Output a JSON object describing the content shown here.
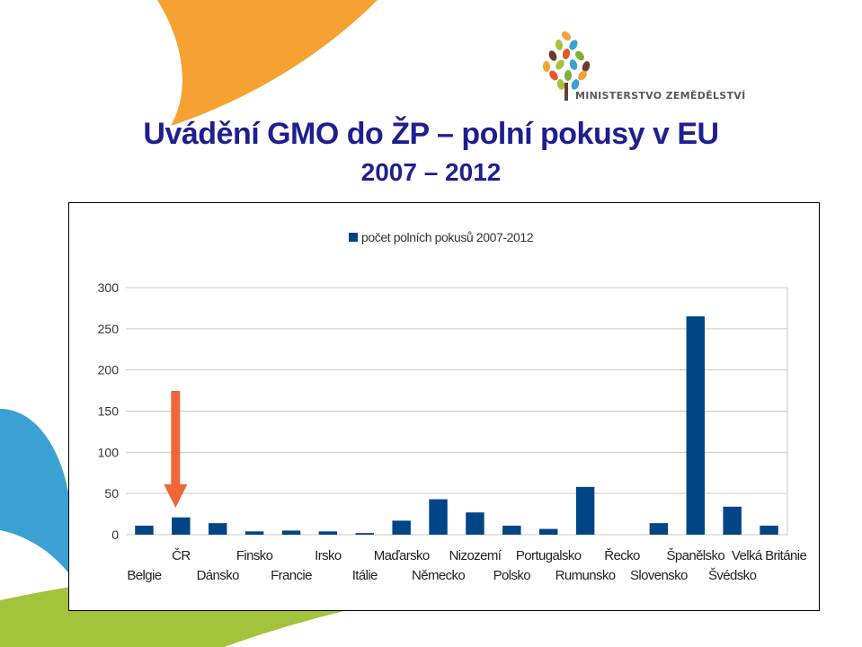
{
  "slide": {
    "title": "Uvádění GMO do ŽP – polní pokusy v EU",
    "subtitle": "2007 – 2012",
    "logo_text": "MINISTERSTVO ZEMĚDĚLSTVÍ",
    "logo_icon": "tree-logo-icon",
    "pointer_icon": "down-arrow-icon"
  },
  "colors": {
    "bar": "#004586",
    "arrow": "#f0653a",
    "title": "#1f1f8f",
    "orange_swirl": "#f5a233",
    "blue_swirl": "#3aa1d2",
    "green_swirl": "#a3c33a"
  },
  "chart_data": {
    "type": "bar",
    "legend": "počet polních pokusů 2007-2012",
    "legend_position": "top",
    "categories": [
      "Belgie",
      "ČR",
      "Dánsko",
      "Finsko",
      "Francie",
      "Irsko",
      "Itálie",
      "Maďarsko",
      "Německo",
      "Nizozemí",
      "Polsko",
      "Portugalsko",
      "Rumunsko",
      "Řecko",
      "Slovensko",
      "Španělsko",
      "Švédsko",
      "Velká Británie"
    ],
    "values": [
      11,
      21,
      14,
      4,
      5,
      4,
      2,
      17,
      43,
      27,
      11,
      7,
      58,
      0,
      14,
      265,
      34,
      11
    ],
    "y_ticks": [
      "0",
      "50",
      "100",
      "150",
      "200",
      "250",
      "300"
    ],
    "ylim": [
      0,
      300
    ],
    "grid": true,
    "highlight_category": "ČR"
  }
}
